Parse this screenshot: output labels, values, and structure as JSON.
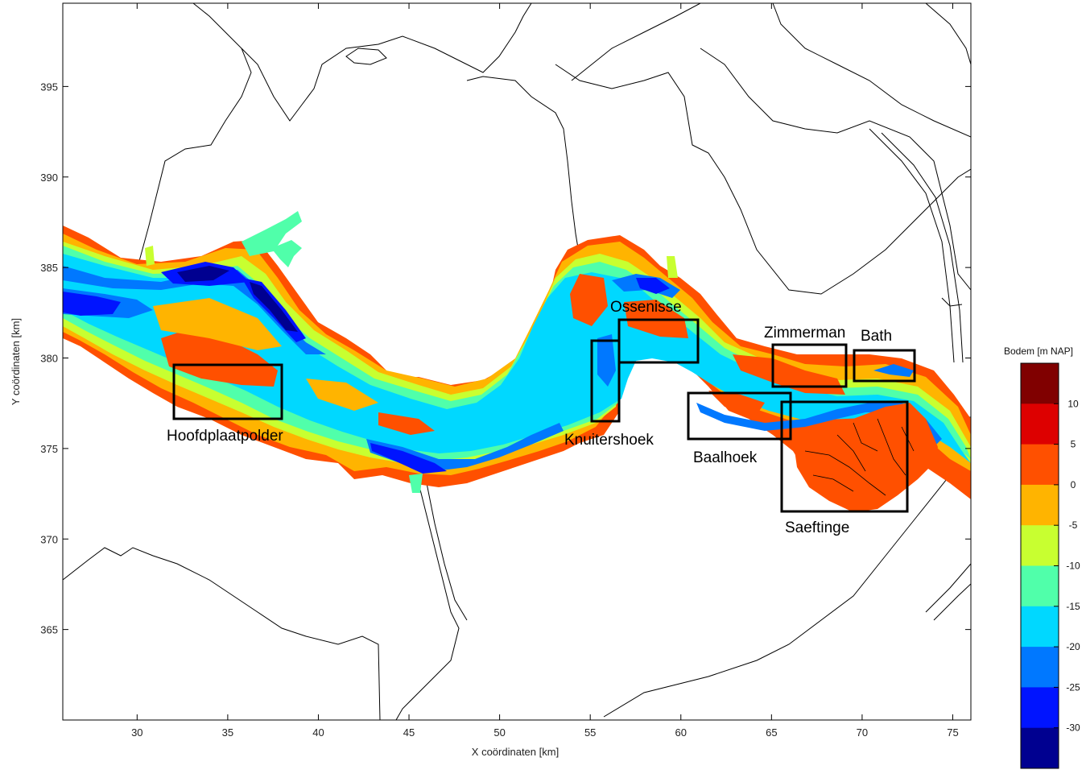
{
  "map": {
    "xlabel": "X coördinaten [km]",
    "ylabel": "Y coördinaten [km]",
    "xticks": [
      "30",
      "35",
      "40",
      "45",
      "50",
      "55",
      "60",
      "65",
      "70",
      "75"
    ],
    "yticks": [
      "395",
      "390",
      "385",
      "380",
      "375",
      "370",
      "365"
    ],
    "xlim": [
      25.9,
      76
    ],
    "ylim": [
      360,
      399.6
    ],
    "regions": [
      {
        "name": "Hoofdplaatpolder"
      },
      {
        "name": "Knuitershoek"
      },
      {
        "name": "Ossenisse"
      },
      {
        "name": "Baalhoek"
      },
      {
        "name": "Zimmerman"
      },
      {
        "name": "Bath"
      },
      {
        "name": "Saeftinge"
      }
    ]
  },
  "colorbar": {
    "title": "Bodem [m NAP]",
    "ticks": [
      "10",
      "5",
      "0",
      "-5",
      "-10",
      "-15",
      "-20",
      "-25",
      "-30"
    ],
    "colors": [
      "#800000",
      "#dd0000",
      "#ff5000",
      "#ffb400",
      "#c8ff30",
      "#50ffaa",
      "#00d8ff",
      "#0078ff",
      "#0014ff",
      "#000090"
    ]
  }
}
